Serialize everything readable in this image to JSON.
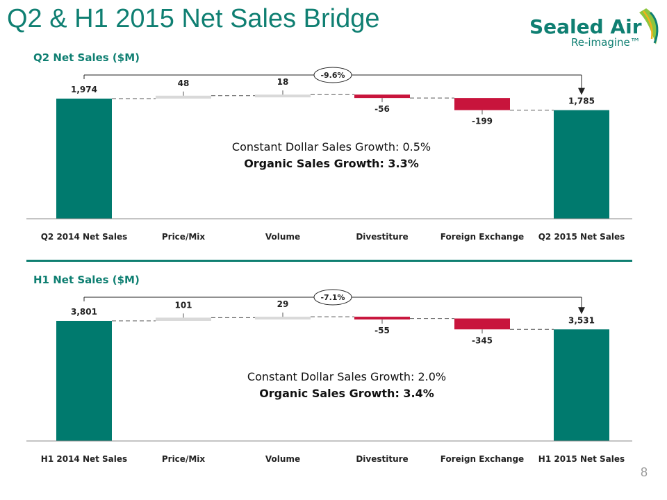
{
  "page": {
    "title": "Q2 & H1 2015 Net Sales Bridge",
    "page_number": "8",
    "brand_color": "#0f7f72"
  },
  "logo": {
    "name": "Sealed Air",
    "tagline": "Re-imagine™"
  },
  "chart_data": [
    {
      "type": "bar",
      "subtype": "waterfall",
      "title": "Q2 Net Sales ($M)",
      "categories": [
        "Q2 2014 Net Sales",
        "Price/Mix",
        "Volume",
        "Divestiture",
        "Foreign Exchange",
        "Q2 2015 Net Sales"
      ],
      "values": [
        1974,
        48,
        18,
        -56,
        -199,
        1785
      ],
      "value_labels": [
        "1,974",
        "48",
        "18",
        "-56",
        "-199",
        "1,785"
      ],
      "kinds": [
        "total",
        "delta",
        "delta",
        "delta",
        "delta",
        "total"
      ],
      "change_label": "-9.6%",
      "annotation_lines": [
        "Constant Dollar Sales Growth: 0.5%",
        "Organic Sales Growth: 3.3%"
      ],
      "colors": {
        "total": "#007a6e",
        "positive": "#d9d9d9",
        "negative": "#c8143c"
      },
      "grid": false
    },
    {
      "type": "bar",
      "subtype": "waterfall",
      "title": "H1 Net Sales ($M)",
      "categories": [
        "H1 2014 Net Sales",
        "Price/Mix",
        "Volume",
        "Divestiture",
        "Foreign Exchange",
        "H1 2015 Net Sales"
      ],
      "values": [
        3801,
        101,
        29,
        -55,
        -345,
        3531
      ],
      "value_labels": [
        "3,801",
        "101",
        "29",
        "-55",
        "-345",
        "3,531"
      ],
      "kinds": [
        "total",
        "delta",
        "delta",
        "delta",
        "delta",
        "total"
      ],
      "change_label": "-7.1%",
      "annotation_lines": [
        "Constant Dollar Sales Growth: 2.0%",
        "Organic Sales Growth: 3.4%"
      ],
      "colors": {
        "total": "#007a6e",
        "positive": "#d9d9d9",
        "negative": "#c8143c"
      },
      "grid": false
    }
  ]
}
